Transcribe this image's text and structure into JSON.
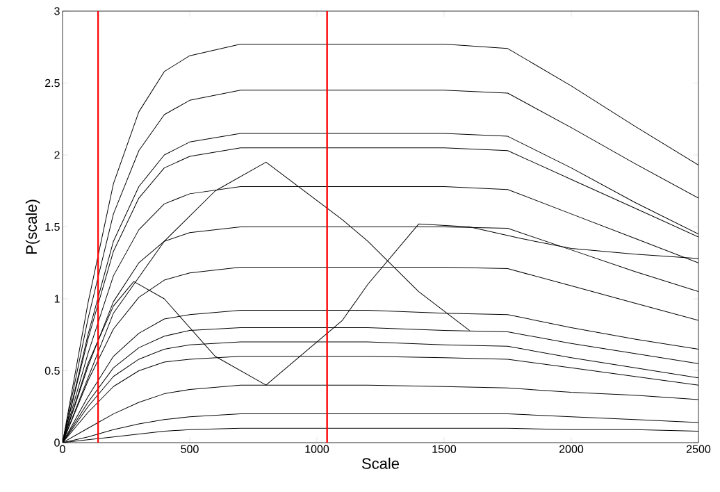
{
  "chart_data": {
    "type": "line",
    "xlabel": "Scale",
    "ylabel": "P(scale)",
    "x": [
      0,
      100,
      200,
      300,
      400,
      500,
      700,
      1200,
      1500,
      1750,
      2000,
      2250,
      2500
    ],
    "xlim": [
      0,
      2500
    ],
    "xticks": [
      0,
      500,
      1000,
      1500,
      2000,
      2500
    ],
    "ylim": [
      0,
      3
    ],
    "yticks": [
      0,
      0.5,
      1,
      1.5,
      2,
      2.5,
      3
    ],
    "series": [
      {
        "color": "#000000",
        "values": [
          0,
          0.97,
          1.8,
          2.3,
          2.58,
          2.69,
          2.77,
          2.77,
          2.77,
          2.74,
          2.48,
          2.2,
          1.93
        ]
      },
      {
        "color": "#000000",
        "values": [
          0,
          0.86,
          1.59,
          2.03,
          2.28,
          2.38,
          2.45,
          2.45,
          2.45,
          2.43,
          2.19,
          1.94,
          1.7
        ]
      },
      {
        "color": "#000000",
        "values": [
          0,
          0.75,
          1.4,
          1.78,
          2.0,
          2.09,
          2.15,
          2.15,
          2.15,
          2.13,
          1.91,
          1.67,
          1.45
        ]
      },
      {
        "color": "#000000",
        "values": [
          0,
          0.72,
          1.33,
          1.7,
          1.91,
          1.99,
          2.05,
          2.05,
          2.05,
          2.03,
          1.83,
          1.63,
          1.43
        ]
      },
      {
        "color": "#000000",
        "values": [
          0,
          0.62,
          1.16,
          1.48,
          1.66,
          1.73,
          1.78,
          1.78,
          1.78,
          1.76,
          1.59,
          1.42,
          1.25
        ]
      },
      {
        "color": "#000000",
        "values": [
          0,
          0.53,
          0.98,
          1.25,
          1.4,
          1.46,
          1.5,
          1.5,
          1.5,
          1.49,
          1.34,
          1.19,
          1.05
        ]
      },
      {
        "color": "#000000",
        "values": [
          0,
          0.43,
          0.79,
          1.01,
          1.13,
          1.18,
          1.22,
          1.22,
          1.22,
          1.21,
          1.09,
          0.97,
          0.85
        ]
      },
      {
        "color": "#000000",
        "values": [
          0,
          0.32,
          0.6,
          0.76,
          0.86,
          0.89,
          0.92,
          0.92,
          0.9,
          0.89,
          0.8,
          0.72,
          0.65
        ]
      },
      {
        "color": "#000000",
        "values": [
          0,
          0.28,
          0.52,
          0.66,
          0.74,
          0.78,
          0.8,
          0.8,
          0.78,
          0.77,
          0.69,
          0.62,
          0.55
        ]
      },
      {
        "color": "#000000",
        "values": [
          0,
          0.25,
          0.46,
          0.58,
          0.65,
          0.68,
          0.7,
          0.7,
          0.68,
          0.67,
          0.59,
          0.52,
          0.45
        ]
      },
      {
        "color": "#000000",
        "values": [
          0,
          0.21,
          0.39,
          0.5,
          0.56,
          0.58,
          0.6,
          0.6,
          0.59,
          0.58,
          0.52,
          0.46,
          0.4
        ]
      },
      {
        "color": "#000000",
        "values": [
          0,
          0.1,
          0.2,
          0.28,
          0.34,
          0.37,
          0.4,
          0.4,
          0.39,
          0.38,
          0.35,
          0.33,
          0.3
        ]
      },
      {
        "color": "#000000",
        "values": [
          0,
          0.04,
          0.09,
          0.13,
          0.16,
          0.18,
          0.2,
          0.2,
          0.2,
          0.2,
          0.18,
          0.16,
          0.14
        ]
      },
      {
        "color": "#000000",
        "values": [
          0,
          0.02,
          0.04,
          0.06,
          0.08,
          0.09,
          0.1,
          0.1,
          0.1,
          0.1,
          0.09,
          0.09,
          0.08
        ]
      },
      {
        "color": "#000000",
        "x": [
          0,
          200,
          400,
          600,
          800,
          1100,
          1200,
          1400,
          1600
        ],
        "values": [
          0,
          0.9,
          1.4,
          1.75,
          1.95,
          1.55,
          1.4,
          1.05,
          0.78
        ]
      },
      {
        "color": "#000000",
        "x": [
          0,
          100,
          200,
          280,
          400,
          600,
          800,
          1100,
          1200,
          1400,
          1600,
          1800,
          2000,
          2250,
          2500
        ],
        "values": [
          0,
          0.55,
          0.95,
          1.12,
          1.0,
          0.6,
          0.4,
          0.85,
          1.1,
          1.52,
          1.5,
          1.42,
          1.35,
          1.31,
          1.28
        ]
      }
    ],
    "ref_lines": [
      {
        "axis": "x",
        "value": 140,
        "color": "#ff0000"
      },
      {
        "axis": "x",
        "value": 1040,
        "color": "#ff0000"
      }
    ]
  }
}
